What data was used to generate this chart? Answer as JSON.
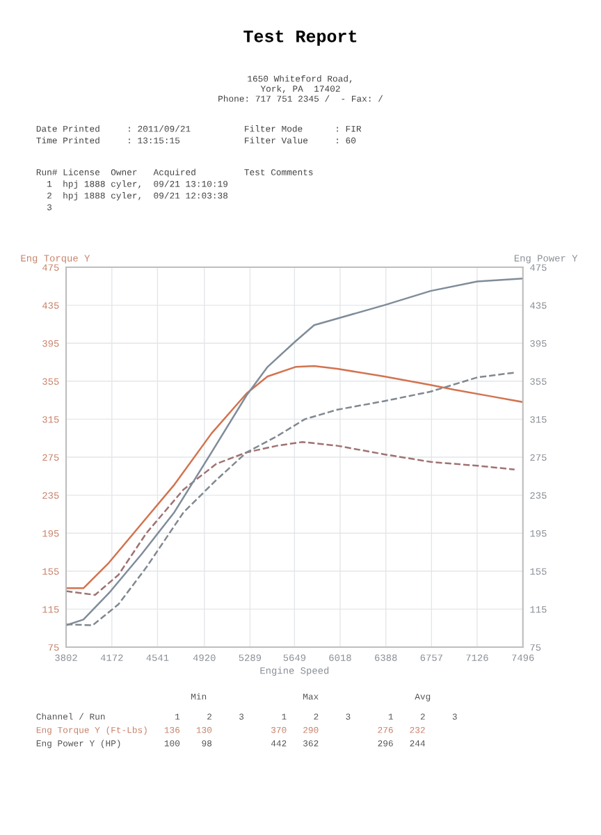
{
  "chart_data": {
    "type": "line",
    "title": "Test Report",
    "xlabel": "Engine Speed",
    "ylabel": "Eng Torque Y",
    "y2label": "Eng Power Y",
    "xlim": [
      3802,
      7496
    ],
    "xticks": [
      3802,
      4172,
      4541,
      4920,
      5289,
      5649,
      6018,
      6388,
      6757,
      7126,
      7496
    ],
    "ylim": [
      75,
      475
    ],
    "yticks": [
      75,
      115,
      155,
      195,
      235,
      275,
      315,
      355,
      395,
      435,
      475
    ],
    "y2lim": [
      75,
      475
    ],
    "y2ticks": [
      75,
      115,
      155,
      195,
      235,
      275,
      315,
      355,
      395,
      435,
      475
    ],
    "grid": true,
    "marker": "none",
    "series": [
      {
        "color": "#d2734f",
        "line_style": "solid",
        "x": [
          3802,
          3942,
          4149,
          4413,
          4677,
          4978,
          5261,
          5431,
          5657,
          5808,
          5996,
          6374,
          6750,
          6939,
          7240,
          7496
        ],
        "values": [
          137,
          137,
          164,
          205,
          246,
          300,
          342,
          360,
          370,
          371,
          368,
          360,
          351,
          346,
          339,
          333
        ]
      },
      {
        "color": "#7f8c9a",
        "line_style": "solid",
        "axis": "y2",
        "x": [
          3802,
          3942,
          4149,
          4413,
          4677,
          4978,
          5261,
          5431,
          5657,
          5808,
          5996,
          6374,
          6750,
          7127,
          7496
        ],
        "values": [
          98,
          104,
          132,
          173,
          217,
          280,
          340,
          370,
          397,
          414,
          421,
          435,
          450,
          460,
          463
        ]
      },
      {
        "color": "#a07272",
        "line_style": "dashed",
        "x": [
          3802,
          4036,
          4225,
          4451,
          4752,
          5017,
          5261,
          5506,
          5713,
          5996,
          6374,
          6750,
          7127,
          7429
        ],
        "values": [
          134,
          130,
          151,
          195,
          241,
          268,
          280,
          287,
          291,
          287,
          278,
          270,
          266,
          262
        ]
      },
      {
        "color": "#808890",
        "line_style": "dashed",
        "axis": "y2",
        "x": [
          3802,
          4017,
          4225,
          4451,
          4752,
          5017,
          5261,
          5506,
          5733,
          5996,
          6374,
          6750,
          7127,
          7429
        ],
        "values": [
          99,
          98,
          120,
          159,
          217,
          251,
          280,
          297,
          315,
          325,
          334,
          344,
          359,
          364
        ]
      }
    ],
    "annotations": [
      "1650 Whiteford Road,",
      "York, PA  17402",
      "Phone: 717 751 2345 /  - Fax: /",
      "Date Printed     : 2011/09/21          Filter Mode      : FIR",
      "Time Printed     : 13:15:15            Filter Value     : 60",
      "Run# License  Owner   Acquired         Test Comments",
      "  1  hpj 1888 cyler,  09/21 13:10:19",
      "  2  hpj 1888 cyler,  09/21 12:03:38",
      "  3",
      "                             Min                  Max                  Avg",
      "Channel / Run             1     2     3       1     2     3       1     2     3",
      "Eng Torque Y (Ft-Lbs)   136   130           370   290           276   232",
      "Eng Power Y (HP)        100    98           442   362           296   244"
    ]
  }
}
